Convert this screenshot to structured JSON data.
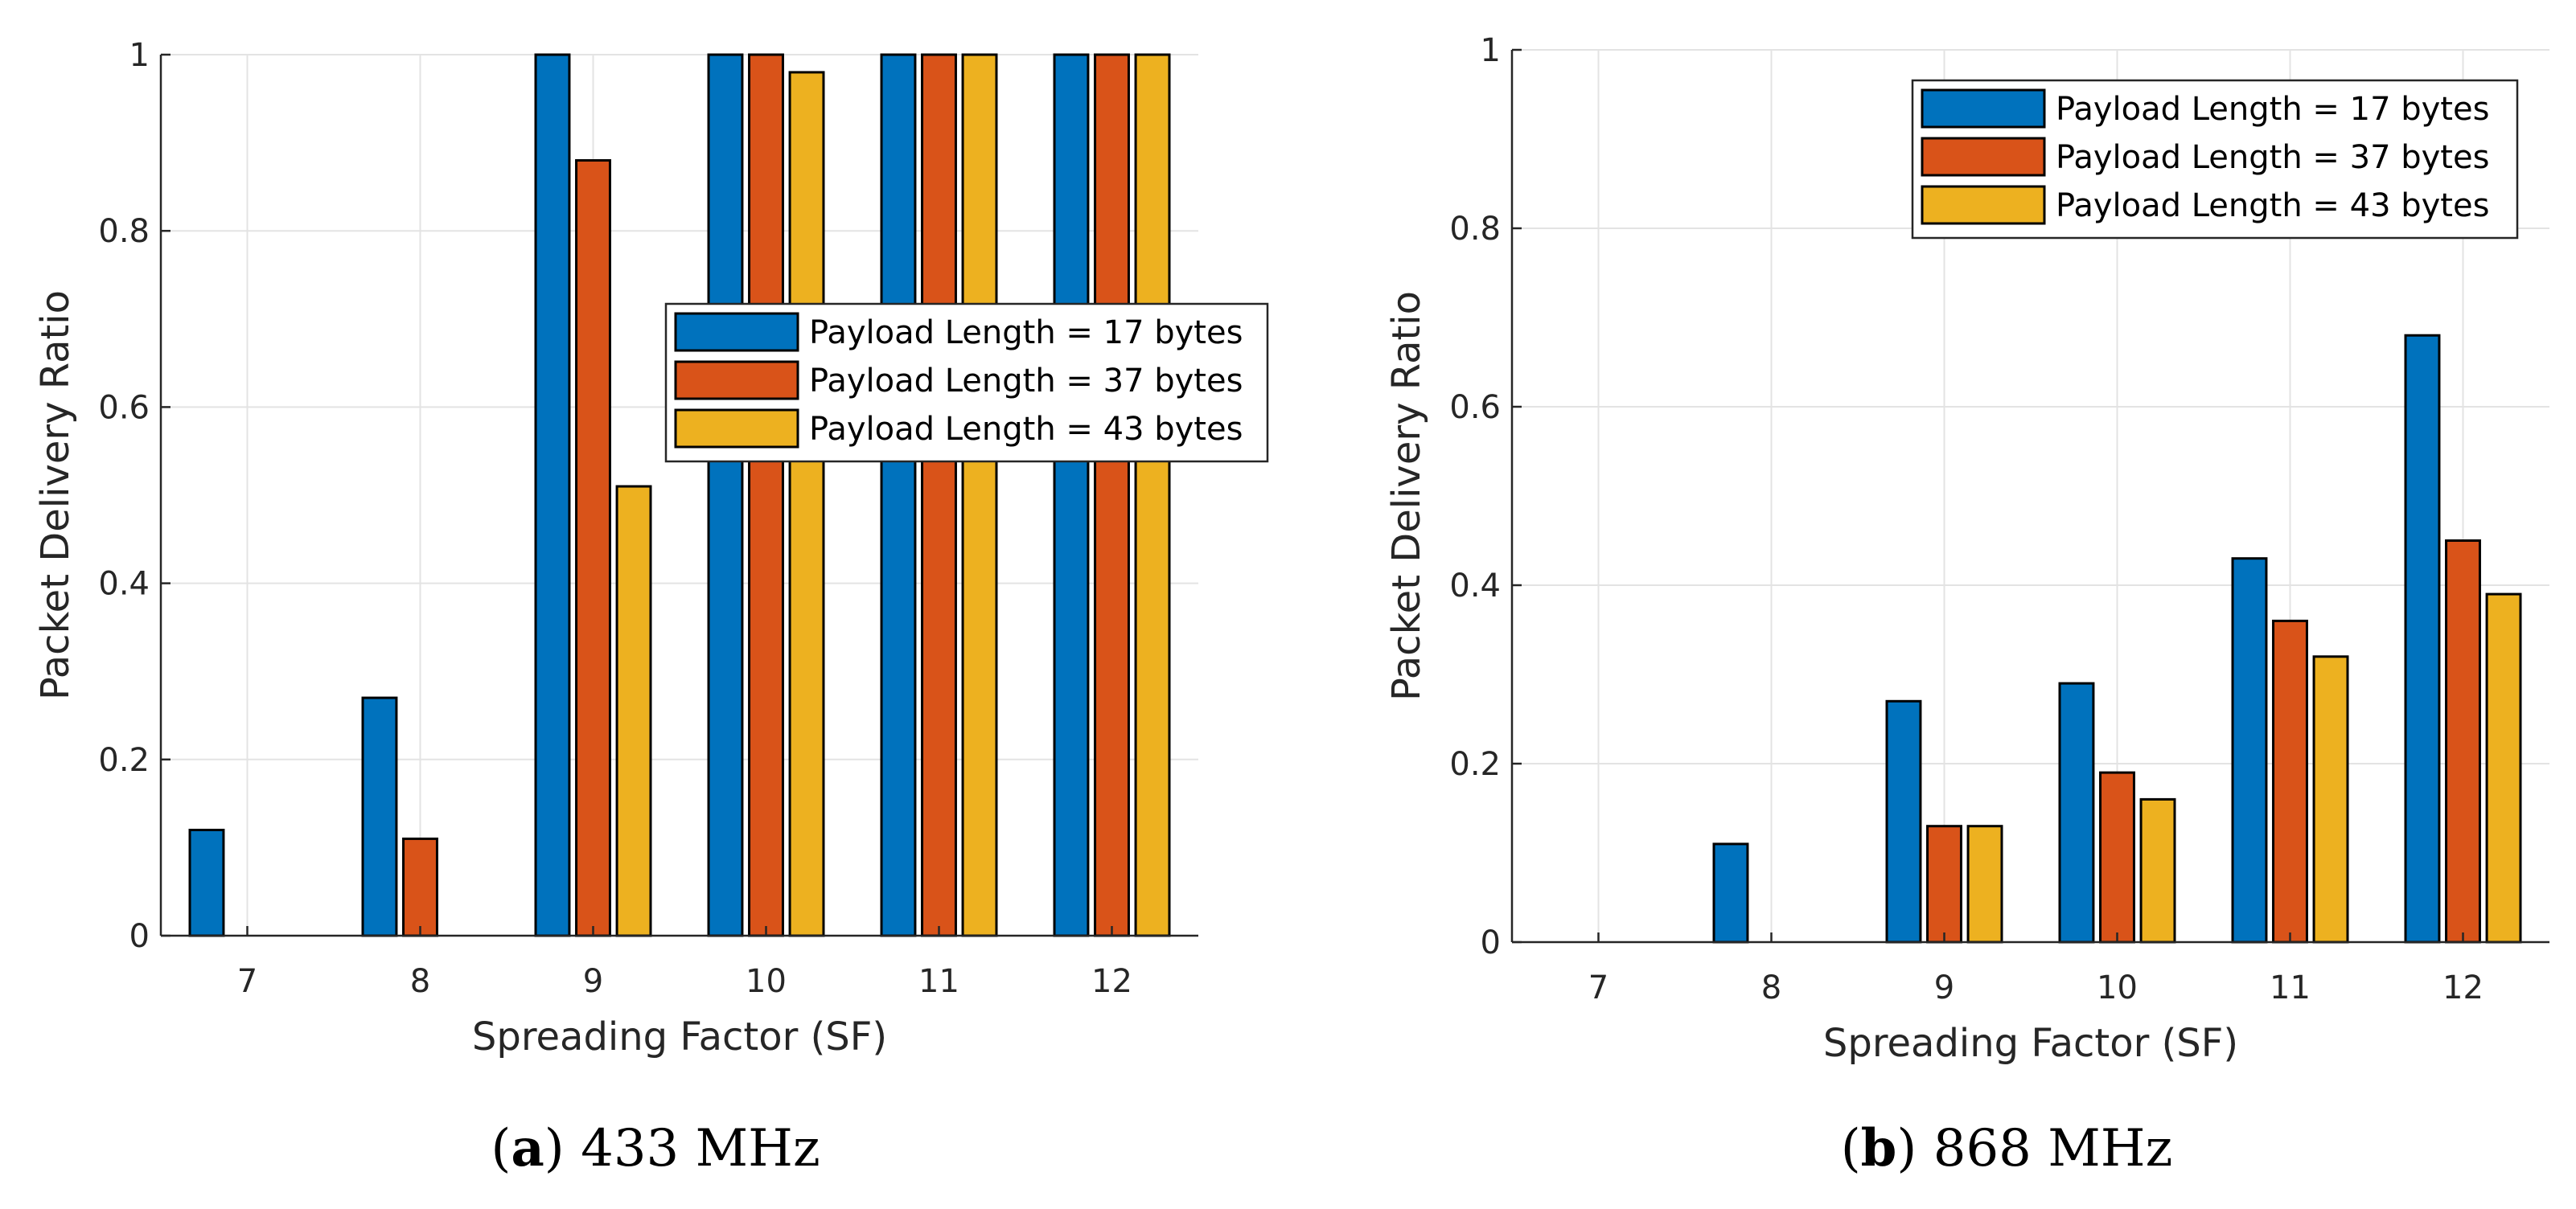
{
  "chart_data": [
    {
      "type": "bar",
      "panel_label": "a",
      "caption": "433 MHz",
      "xlabel": "Spreading Factor (SF)",
      "ylabel": "Packet Delivery Ratio",
      "categories": [
        "7",
        "8",
        "9",
        "10",
        "11",
        "12"
      ],
      "ylim": [
        0,
        1
      ],
      "yticks": [
        0,
        0.2,
        0.4,
        0.6,
        0.8,
        1
      ],
      "ytick_labels": [
        "0",
        "0.2",
        "0.4",
        "0.6",
        "0.8",
        "1"
      ],
      "grid": true,
      "legend_position": "center-right",
      "series": [
        {
          "name": "Payload Length = 17 bytes",
          "color": "#0072BD",
          "values": [
            0.12,
            0.27,
            1.0,
            1.0,
            1.0,
            1.0
          ]
        },
        {
          "name": "Payload Length = 37 bytes",
          "color": "#D95319",
          "values": [
            0,
            0.11,
            0.88,
            1.0,
            1.0,
            1.0
          ]
        },
        {
          "name": "Payload Length = 43 bytes",
          "color": "#EDB120",
          "values": [
            0,
            0,
            0.51,
            0.98,
            1.0,
            1.0
          ]
        }
      ]
    },
    {
      "type": "bar",
      "panel_label": "b",
      "caption": "868 MHz",
      "xlabel": "Spreading Factor (SF)",
      "ylabel": "Packet Delivery Ratio",
      "categories": [
        "7",
        "8",
        "9",
        "10",
        "11",
        "12"
      ],
      "ylim": [
        0,
        1
      ],
      "yticks": [
        0,
        0.2,
        0.4,
        0.6,
        0.8,
        1
      ],
      "ytick_labels": [
        "0",
        "0.2",
        "0.4",
        "0.6",
        "0.8",
        "1"
      ],
      "grid": true,
      "legend_position": "top-right",
      "series": [
        {
          "name": "Payload Length = 17 bytes",
          "color": "#0072BD",
          "values": [
            0,
            0.11,
            0.27,
            0.29,
            0.43,
            0.68
          ]
        },
        {
          "name": "Payload Length = 37 bytes",
          "color": "#D95319",
          "values": [
            0,
            0,
            0.13,
            0.19,
            0.36,
            0.45
          ]
        },
        {
          "name": "Payload Length = 43 bytes",
          "color": "#EDB120",
          "values": [
            0,
            0,
            0.13,
            0.16,
            0.32,
            0.39
          ]
        }
      ]
    }
  ]
}
